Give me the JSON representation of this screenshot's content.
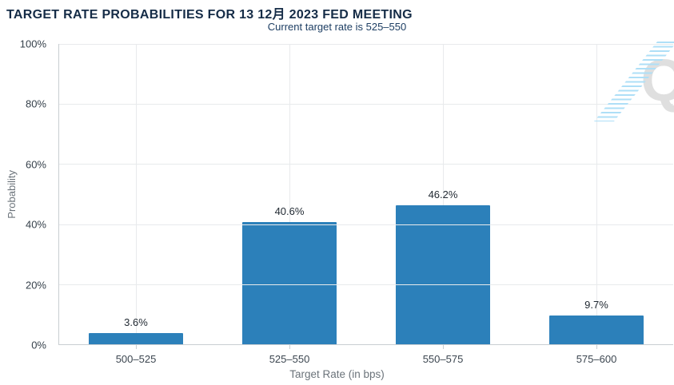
{
  "header": {
    "title": "TARGET RATE PROBABILITIES FOR 13 12月 2023 FED MEETING",
    "subtitle": "Current target rate is 525–550"
  },
  "chart_data": {
    "type": "bar",
    "title": "TARGET RATE PROBABILITIES FOR 13 12月 2023 FED MEETING",
    "subtitle": "Current target rate is 525–550",
    "categories": [
      "500–525",
      "525–550",
      "550–575",
      "575–600"
    ],
    "values": [
      3.6,
      40.6,
      46.2,
      9.7
    ],
    "value_labels": [
      "3.6%",
      "40.6%",
      "46.2%",
      "9.7%"
    ],
    "xlabel": "Target Rate (in bps)",
    "ylabel": "Probability",
    "ylim": [
      0,
      100
    ],
    "ytick_step": 20,
    "ytick_labels": [
      "0%",
      "20%",
      "40%",
      "60%",
      "80%",
      "100%"
    ],
    "grid": true,
    "legend": "none"
  },
  "watermark": {
    "letter": "Q"
  },
  "colors": {
    "title": "#152c47",
    "subtitle": "#1d3e63",
    "bar": "#2c80ba",
    "axis_line": "#c9ced2",
    "gridline": "#e8eaec",
    "tick_label": "#36414b",
    "category_label": "#3c4650",
    "axis_title": "#6b737a",
    "data_label": "#222a33",
    "watermark_letter": "#dfdfdf",
    "watermark_stripes": "#aedff7"
  }
}
